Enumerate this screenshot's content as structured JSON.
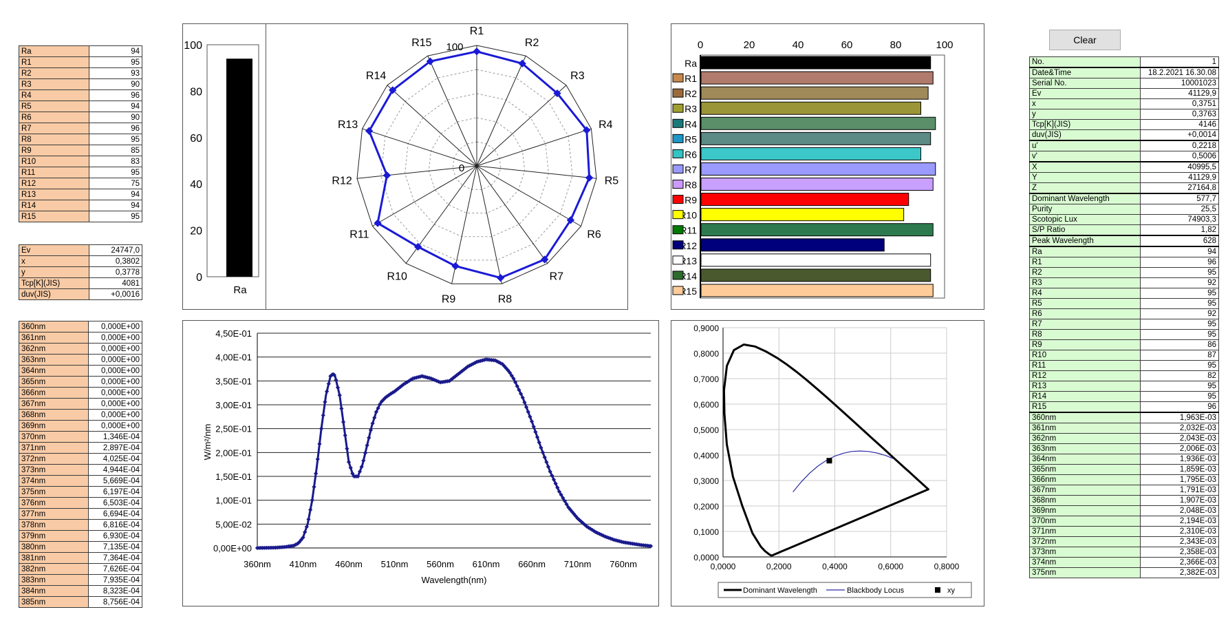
{
  "clear_button": "Clear",
  "ra_table": [
    [
      "Ra",
      "94"
    ],
    [
      "R1",
      "95"
    ],
    [
      "R2",
      "93"
    ],
    [
      "R3",
      "90"
    ],
    [
      "R4",
      "96"
    ],
    [
      "R5",
      "94"
    ],
    [
      "R6",
      "90"
    ],
    [
      "R7",
      "96"
    ],
    [
      "R8",
      "95"
    ],
    [
      "R9",
      "85"
    ],
    [
      "R10",
      "83"
    ],
    [
      "R11",
      "95"
    ],
    [
      "R12",
      "75"
    ],
    [
      "R13",
      "94"
    ],
    [
      "R14",
      "94"
    ],
    [
      "R15",
      "95"
    ]
  ],
  "measure_table": [
    [
      "Ev",
      "24747,0"
    ],
    [
      "x",
      "0,3802"
    ],
    [
      "y",
      "0,3778"
    ],
    [
      "Tcp[K](JIS)",
      "4081"
    ],
    [
      "duv(JIS)",
      "+0,0016"
    ]
  ],
  "spectrum_table": [
    [
      "360nm",
      "0,000E+00"
    ],
    [
      "361nm",
      "0,000E+00"
    ],
    [
      "362nm",
      "0,000E+00"
    ],
    [
      "363nm",
      "0,000E+00"
    ],
    [
      "364nm",
      "0,000E+00"
    ],
    [
      "365nm",
      "0,000E+00"
    ],
    [
      "366nm",
      "0,000E+00"
    ],
    [
      "367nm",
      "0,000E+00"
    ],
    [
      "368nm",
      "0,000E+00"
    ],
    [
      "369nm",
      "0,000E+00"
    ],
    [
      "370nm",
      "1,346E-04"
    ],
    [
      "371nm",
      "2,897E-04"
    ],
    [
      "372nm",
      "4,025E-04"
    ],
    [
      "373nm",
      "4,944E-04"
    ],
    [
      "374nm",
      "5,669E-04"
    ],
    [
      "375nm",
      "6,197E-04"
    ],
    [
      "376nm",
      "6,503E-04"
    ],
    [
      "377nm",
      "6,694E-04"
    ],
    [
      "378nm",
      "6,816E-04"
    ],
    [
      "379nm",
      "6,930E-04"
    ],
    [
      "380nm",
      "7,135E-04"
    ],
    [
      "381nm",
      "7,364E-04"
    ],
    [
      "382nm",
      "7,626E-04"
    ],
    [
      "383nm",
      "7,935E-04"
    ],
    [
      "384nm",
      "8,323E-04"
    ],
    [
      "385nm",
      "8,756E-04"
    ]
  ],
  "right_table": [
    [
      "No.",
      "1"
    ],
    [
      "Date&Time",
      "18.2.2021 16.30.08"
    ],
    [
      "Serial No.",
      "10001023"
    ],
    [
      "Ev",
      "41129,9"
    ],
    [
      "x",
      "0,3751"
    ],
    [
      "y",
      "0,3763"
    ],
    [
      "Tcp[K](JIS)",
      "4146"
    ],
    [
      "duv(JIS)",
      "+0,0014"
    ],
    [
      "u'",
      "0,2218"
    ],
    [
      "v'",
      "0,5006"
    ],
    [
      "X",
      "40995,5"
    ],
    [
      "Y",
      "41129,9"
    ],
    [
      "Z",
      "27164,8"
    ],
    [
      "Dominant Wavelength",
      "577,7"
    ],
    [
      "Purity",
      "25,5"
    ],
    [
      "Scotopic Lux",
      "74903,3"
    ],
    [
      "S/P Ratio",
      "1,82"
    ],
    [
      "Peak Wavelength",
      "628"
    ],
    [
      "Ra",
      "94"
    ],
    [
      "R1",
      "96"
    ],
    [
      "R2",
      "95"
    ],
    [
      "R3",
      "92"
    ],
    [
      "R4",
      "95"
    ],
    [
      "R5",
      "95"
    ],
    [
      "R6",
      "92"
    ],
    [
      "R7",
      "95"
    ],
    [
      "R8",
      "95"
    ],
    [
      "R9",
      "86"
    ],
    [
      "R10",
      "87"
    ],
    [
      "R11",
      "95"
    ],
    [
      "R12",
      "82"
    ],
    [
      "R13",
      "95"
    ],
    [
      "R14",
      "95"
    ],
    [
      "R15",
      "96"
    ],
    [
      "360nm",
      "1,963E-03"
    ],
    [
      "361nm",
      "2,032E-03"
    ],
    [
      "362nm",
      "2,043E-03"
    ],
    [
      "363nm",
      "2,006E-03"
    ],
    [
      "364nm",
      "1,936E-03"
    ],
    [
      "365nm",
      "1,859E-03"
    ],
    [
      "366nm",
      "1,795E-03"
    ],
    [
      "367nm",
      "1,791E-03"
    ],
    [
      "368nm",
      "1,907E-03"
    ],
    [
      "369nm",
      "2,048E-03"
    ],
    [
      "370nm",
      "2,194E-03"
    ],
    [
      "371nm",
      "2,310E-03"
    ],
    [
      "372nm",
      "2,343E-03"
    ],
    [
      "373nm",
      "2,358E-03"
    ],
    [
      "374nm",
      "2,366E-03"
    ],
    [
      "375nm",
      "2,382E-03"
    ]
  ],
  "right_table_thick_after": [
    0,
    7,
    9,
    12,
    16,
    17,
    33
  ],
  "chart_data": [
    {
      "type": "bar",
      "categories": [
        "Ra"
      ],
      "values": [
        94
      ],
      "ylim": [
        0,
        100
      ],
      "yticks": [
        "0",
        "20",
        "40",
        "60",
        "80",
        "100"
      ],
      "color": "#000000"
    },
    {
      "type": "radar",
      "categories": [
        "R1",
        "R2",
        "R3",
        "R4",
        "R5",
        "R6",
        "R7",
        "R8",
        "R9",
        "R10",
        "R11",
        "R12",
        "R13",
        "R14",
        "R15"
      ],
      "values": [
        95,
        93,
        90,
        96,
        94,
        90,
        96,
        95,
        85,
        83,
        95,
        75,
        94,
        94,
        95
      ],
      "rlim": [
        0,
        100
      ],
      "rticks": [
        "0",
        "100"
      ],
      "color": "#1a1ad6"
    },
    {
      "type": "bar",
      "orientation": "horizontal",
      "categories": [
        "Ra",
        "R1",
        "R2",
        "R3",
        "R4",
        "R5",
        "R6",
        "R7",
        "R8",
        "R9",
        "R10",
        "R11",
        "R12",
        "R13",
        "R14",
        "R15"
      ],
      "values": [
        94,
        95,
        93,
        90,
        96,
        94,
        90,
        96,
        95,
        85,
        83,
        95,
        75,
        94,
        94,
        95
      ],
      "colors": [
        "#000000",
        "#b07b6c",
        "#a08a5a",
        "#9a9536",
        "#5b8f69",
        "#5c8a85",
        "#3cc8c8",
        "#9b9bff",
        "#c8a0ff",
        "#ff0000",
        "#ffff00",
        "#2d7a4e",
        "#00007a",
        "#ffffff",
        "#4a5a2e",
        "#ffcc99"
      ],
      "swatch_colors": [
        "",
        "#c8894c",
        "#9c6b3a",
        "#a0a030",
        "#1a7a7a",
        "#1e96c8",
        "#33c3c3",
        "#9999ff",
        "#cc99ff",
        "#ff0000",
        "#ffff00",
        "#007a00",
        "#00007a",
        "#ffffff",
        "#2d6b2d",
        "#ffcc99"
      ],
      "xlim": [
        0,
        100
      ],
      "xticks": [
        "0",
        "20",
        "40",
        "60",
        "80",
        "100"
      ]
    },
    {
      "type": "line",
      "xlabel": "Wavelength(nm)",
      "ylabel": "W/m²/nm",
      "xlim": [
        360,
        790
      ],
      "ylim": [
        0,
        0.45
      ],
      "xticks": [
        "360nm",
        "410nm",
        "460nm",
        "510nm",
        "560nm",
        "610nm",
        "660nm",
        "710nm",
        "760nm"
      ],
      "yticks": [
        "0,00E+00",
        "5,00E-02",
        "1,00E-01",
        "1,50E-01",
        "2,00E-01",
        "2,50E-01",
        "3,00E-01",
        "3,50E-01",
        "4,00E-01",
        "4,50E-01"
      ],
      "color": "#1a1a8c",
      "x": [
        360,
        370,
        380,
        390,
        400,
        405,
        410,
        415,
        420,
        425,
        430,
        435,
        440,
        443,
        445,
        450,
        455,
        460,
        465,
        470,
        475,
        480,
        485,
        490,
        495,
        500,
        505,
        510,
        520,
        530,
        540,
        550,
        560,
        570,
        580,
        590,
        600,
        610,
        620,
        628,
        635,
        640,
        650,
        660,
        670,
        680,
        690,
        700,
        710,
        720,
        730,
        740,
        750,
        760,
        770,
        780,
        790
      ],
      "y": [
        0.0,
        0.0003,
        0.0007,
        0.002,
        0.005,
        0.01,
        0.022,
        0.05,
        0.1,
        0.17,
        0.25,
        0.32,
        0.36,
        0.365,
        0.36,
        0.32,
        0.25,
        0.18,
        0.15,
        0.15,
        0.175,
        0.215,
        0.255,
        0.285,
        0.305,
        0.315,
        0.322,
        0.328,
        0.343,
        0.355,
        0.36,
        0.355,
        0.347,
        0.35,
        0.365,
        0.38,
        0.39,
        0.395,
        0.393,
        0.385,
        0.37,
        0.355,
        0.315,
        0.265,
        0.21,
        0.16,
        0.118,
        0.085,
        0.062,
        0.045,
        0.033,
        0.024,
        0.017,
        0.012,
        0.009,
        0.006,
        0.004
      ]
    },
    {
      "type": "scatter",
      "xlim": [
        0,
        0.8
      ],
      "ylim": [
        0,
        0.9
      ],
      "xticks": [
        "0,0000",
        "0,2000",
        "0,4000",
        "0,6000",
        "0,8000"
      ],
      "yticks": [
        "0,0000",
        "0,1000",
        "0,2000",
        "0,3000",
        "0,4000",
        "0,5000",
        "0,6000",
        "0,7000",
        "0,8000",
        "0,9000"
      ],
      "series": [
        {
          "name": "Dominant Wavelength",
          "color": "#000000",
          "x": [
            0.1741,
            0.173,
            0.1666,
            0.151,
            0.1355,
            0.105,
            0.0687,
            0.0355,
            0.0135,
            0.005,
            0.0035,
            0.0139,
            0.0389,
            0.0743,
            0.1142,
            0.1547,
            0.1929,
            0.2296,
            0.2658,
            0.3016,
            0.3373,
            0.3731,
            0.4087,
            0.4441,
            0.4788,
            0.5125,
            0.5448,
            0.5752,
            0.6029,
            0.627,
            0.6482,
            0.6658,
            0.6801,
            0.6915,
            0.7006,
            0.7079,
            0.714,
            0.7347,
            0.1741
          ],
          "y": [
            0.005,
            0.005,
            0.0089,
            0.0221,
            0.0399,
            0.0934,
            0.2007,
            0.3151,
            0.4416,
            0.5624,
            0.6545,
            0.7502,
            0.812,
            0.8338,
            0.8262,
            0.8059,
            0.7816,
            0.7543,
            0.7243,
            0.6923,
            0.6589,
            0.6245,
            0.5896,
            0.5547,
            0.5202,
            0.4866,
            0.4544,
            0.4242,
            0.3965,
            0.3725,
            0.3514,
            0.334,
            0.3197,
            0.3083,
            0.2993,
            0.292,
            0.2859,
            0.2653,
            0.005
          ]
        },
        {
          "name": "Blackbody Locus",
          "color": "#2a2aa8",
          "x": [
            0.25,
            0.28,
            0.31,
            0.34,
            0.37,
            0.4,
            0.43,
            0.46,
            0.49,
            0.52,
            0.55,
            0.58,
            0.61
          ],
          "y": [
            0.255,
            0.295,
            0.329,
            0.357,
            0.379,
            0.396,
            0.407,
            0.414,
            0.416,
            0.414,
            0.408,
            0.399,
            0.386
          ]
        },
        {
          "name": "xy",
          "color": "#000000",
          "x": [
            0.3802
          ],
          "y": [
            0.3778
          ]
        }
      ]
    }
  ]
}
